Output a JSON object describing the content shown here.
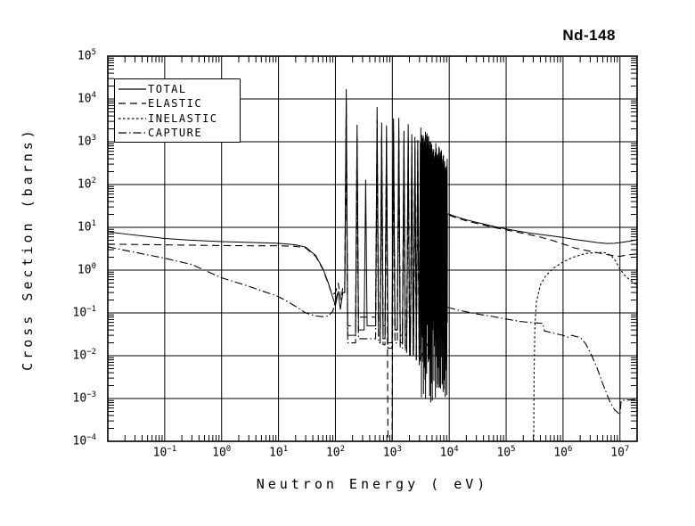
{
  "title": "Nd-148",
  "legend": {
    "items": [
      {
        "label": "TOTAL",
        "style": "solid"
      },
      {
        "label": "ELASTIC",
        "style": "dashed"
      },
      {
        "label": "INELASTIC",
        "style": "dotted"
      },
      {
        "label": "CAPTURE",
        "style": "dashdot"
      }
    ]
  },
  "chart_data": {
    "type": "line",
    "title": "Nd-148",
    "xlabel": "Neutron Energy ( eV)",
    "ylabel": "Cross Section (barns)",
    "scale": "log-log",
    "grid": "decade",
    "x_range": [
      0.01,
      20000000
    ],
    "y_range": [
      0.0001,
      100000
    ],
    "x_tick_exponents": [
      -1,
      0,
      1,
      2,
      3,
      4,
      5,
      6,
      7
    ],
    "y_tick_exponents": [
      5,
      4,
      3,
      2,
      1,
      0,
      -1,
      -2,
      -3,
      -4
    ],
    "series_smooth": {
      "total_low": [
        [
          0.01,
          7.9
        ],
        [
          0.02,
          7.0
        ],
        [
          0.05,
          6.1
        ],
        [
          0.1,
          5.5
        ],
        [
          0.3,
          5.0
        ],
        [
          1,
          4.65
        ],
        [
          3,
          4.45
        ],
        [
          10,
          4.25
        ],
        [
          20,
          3.9
        ],
        [
          30,
          3.45
        ],
        [
          45,
          2.2
        ],
        [
          60,
          1.1
        ],
        [
          75,
          0.5
        ],
        [
          88,
          0.25
        ],
        [
          100,
          0.15
        ],
        [
          112,
          0.32
        ],
        [
          122,
          0.12
        ],
        [
          135,
          0.3
        ]
      ],
      "total_high": [
        [
          9300,
          21
        ],
        [
          12000,
          18.5
        ],
        [
          20000,
          15
        ],
        [
          35000,
          12.5
        ],
        [
          60000,
          10.5
        ],
        [
          100000,
          9.2
        ],
        [
          160000,
          8.2
        ],
        [
          250000,
          7.4
        ],
        [
          400000,
          6.8
        ],
        [
          630000,
          6.3
        ],
        [
          1000000,
          5.8
        ],
        [
          1600000,
          5.2
        ],
        [
          2500000,
          4.8
        ],
        [
          4000000,
          4.4
        ],
        [
          6000000,
          4.2
        ],
        [
          8000000,
          4.25
        ],
        [
          10000000,
          4.4
        ],
        [
          14000000,
          4.7
        ],
        [
          20000000,
          5.1
        ]
      ],
      "elastic_low": [
        [
          0.01,
          4.05
        ],
        [
          0.1,
          3.9
        ],
        [
          1,
          3.75
        ],
        [
          5,
          3.7
        ],
        [
          10,
          3.72
        ],
        [
          20,
          3.6
        ],
        [
          30,
          3.3
        ],
        [
          45,
          2.1
        ],
        [
          60,
          1.05
        ],
        [
          75,
          0.48
        ],
        [
          88,
          0.26
        ],
        [
          100,
          0.3
        ],
        [
          112,
          0.5
        ],
        [
          125,
          0.2
        ],
        [
          135,
          0.4
        ]
      ],
      "elastic_high": [
        [
          9300,
          20
        ],
        [
          12000,
          17.5
        ],
        [
          20000,
          14.2
        ],
        [
          35000,
          11.8
        ],
        [
          60000,
          10.0
        ],
        [
          100000,
          8.7
        ],
        [
          160000,
          7.7
        ],
        [
          250000,
          6.8
        ],
        [
          400000,
          5.9
        ],
        [
          630000,
          5.0
        ],
        [
          1000000,
          4.1
        ],
        [
          1600000,
          3.3
        ],
        [
          2500000,
          2.9
        ],
        [
          4000000,
          2.55
        ],
        [
          6000000,
          2.3
        ],
        [
          8000000,
          2.15
        ],
        [
          10000000,
          2.1
        ],
        [
          13000000,
          2.25
        ],
        [
          20000000,
          2.4
        ]
      ],
      "inelastic": [
        [
          305000,
          8e-05
        ],
        [
          310000,
          0.004
        ],
        [
          320000,
          0.05
        ],
        [
          340000,
          0.18
        ],
        [
          400000,
          0.45
        ],
        [
          500000,
          0.75
        ],
        [
          700000,
          1.15
        ],
        [
          1000000,
          1.55
        ],
        [
          1500000,
          2.0
        ],
        [
          2500000,
          2.45
        ],
        [
          4000000,
          2.6
        ],
        [
          5500000,
          2.55
        ],
        [
          7000000,
          2.2
        ],
        [
          8500000,
          1.6
        ],
        [
          10000000,
          1.05
        ],
        [
          13000000,
          0.68
        ],
        [
          17000000,
          0.52
        ],
        [
          20000000,
          0.45
        ]
      ],
      "capture_low": [
        [
          0.01,
          3.5
        ],
        [
          0.03,
          2.6
        ],
        [
          0.1,
          1.9
        ],
        [
          0.3,
          1.35
        ],
        [
          1,
          0.66
        ],
        [
          3,
          0.42
        ],
        [
          10,
          0.24
        ],
        [
          18,
          0.155
        ],
        [
          30,
          0.1
        ],
        [
          45,
          0.085
        ],
        [
          60,
          0.082
        ],
        [
          75,
          0.085
        ],
        [
          90,
          0.11
        ],
        [
          110,
          0.3
        ]
      ],
      "capture_high": [
        [
          9300,
          0.135
        ],
        [
          15000,
          0.115
        ],
        [
          30000,
          0.095
        ],
        [
          60000,
          0.082
        ],
        [
          100000,
          0.072
        ],
        [
          180000,
          0.063
        ],
        [
          300000,
          0.059
        ],
        [
          440000,
          0.057
        ],
        [
          470000,
          0.038
        ],
        [
          600000,
          0.035
        ],
        [
          800000,
          0.032
        ],
        [
          1000000,
          0.03
        ],
        [
          1200000,
          0.027
        ],
        [
          1450000,
          0.03
        ],
        [
          1700000,
          0.028
        ],
        [
          2000000,
          0.027
        ],
        [
          2500000,
          0.019
        ],
        [
          3200000,
          0.01
        ],
        [
          4000000,
          0.005
        ],
        [
          5000000,
          0.0022
        ],
        [
          6500000,
          0.0009
        ],
        [
          8000000,
          0.00055
        ],
        [
          10000000,
          0.00042
        ],
        [
          10500000,
          0.0009
        ],
        [
          14000000,
          0.00092
        ],
        [
          20000000,
          0.00095
        ]
      ]
    },
    "resonances": {
      "comment_format": "[energy_eV, peak_barns, valley_after_barns]",
      "total": [
        [
          155,
          17000,
          0.03
        ],
        [
          240,
          2500,
          0.04
        ],
        [
          340,
          130,
          0.05
        ],
        [
          540,
          6500,
          0.03
        ],
        [
          650,
          2800,
          0.025
        ],
        [
          790,
          2400,
          0.02
        ],
        [
          1050,
          3500,
          0.04
        ],
        [
          1300,
          3600,
          0.02
        ],
        [
          1600,
          1800,
          0.015
        ],
        [
          1900,
          2600,
          0.01
        ],
        [
          2200,
          1500,
          0.01
        ],
        [
          2500,
          1300,
          0.008
        ],
        [
          2800,
          1100,
          0.006
        ]
      ],
      "elastic": [
        [
          155,
          9000,
          0.05
        ],
        [
          240,
          1300,
          0.08
        ],
        [
          540,
          3200,
          0.06
        ],
        [
          650,
          1400,
          0.05
        ],
        [
          790,
          1200,
          8e-05
        ],
        [
          1050,
          1800,
          0.04
        ],
        [
          1300,
          1800,
          0.03
        ],
        [
          1600,
          900,
          0.03
        ],
        [
          1900,
          1300,
          0.02
        ],
        [
          2200,
          800,
          0.02
        ],
        [
          2500,
          700,
          0.015
        ],
        [
          2800,
          600,
          0.012
        ]
      ],
      "capture": [
        [
          155,
          900,
          0.02
        ],
        [
          240,
          260,
          0.025
        ],
        [
          540,
          420,
          0.02
        ],
        [
          650,
          180,
          0.018
        ],
        [
          790,
          200,
          0.015
        ],
        [
          1050,
          260,
          0.02
        ],
        [
          1300,
          210,
          0.015
        ],
        [
          1600,
          130,
          0.012
        ],
        [
          1900,
          150,
          0.01
        ],
        [
          2200,
          110,
          0.01
        ],
        [
          2500,
          90,
          0.009
        ],
        [
          2800,
          80,
          0.008
        ]
      ],
      "dense_band": {
        "from": 3100,
        "to": 9200,
        "count": 52,
        "top_start": 1500,
        "top_end": 300,
        "bottom_log_max": -1.2,
        "bottom_log_min": -3.1
      }
    },
    "colors": {
      "foreground": "#000000",
      "background": "#ffffff"
    }
  }
}
